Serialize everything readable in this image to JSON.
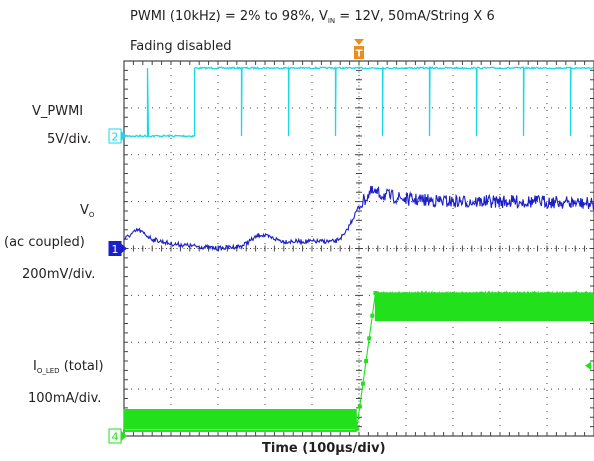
{
  "header": {
    "line1": "PWMI (10kHz) = 2% to 98%, V",
    "line1_sub": "IN",
    "line1_rest": " = 12V, 50mA/String X 6",
    "line2": "Fading disabled"
  },
  "labels": {
    "vpwmi_name": "V_PWMI",
    "vpwmi_scale": "5V/div.",
    "vo_name": "V",
    "vo_sub": "O",
    "vo_coupling": "(ac coupled)",
    "vo_scale": "200mV/div.",
    "io_name": "I",
    "io_sub": "O_LED",
    "io_rest": " (total)",
    "io_scale": "100mA/div."
  },
  "markers": {
    "ch2": "2",
    "ch1": "1",
    "ch4": "4",
    "trigger": "T"
  },
  "chart_data": {
    "type": "line",
    "xlabel": "Time (100µs/div)",
    "ylabel": "",
    "x_divisions": 10,
    "y_divisions": 8,
    "x_unit": "µs",
    "x_range": [
      0,
      1000
    ],
    "trigger_time_us": 500,
    "series": [
      {
        "name": "V_PWMI",
        "channel": "2",
        "color": "#1ad8e6",
        "scale": "5V/div.",
        "baseline_div": 6.4,
        "high_div": 7.85,
        "transition_us": 150,
        "pulse_period_us": 100
      },
      {
        "name": "V_O",
        "channel": "1",
        "color": "#1b1fc8",
        "scale": "200mV/div.",
        "ac_coupled": true,
        "points_div": [
          [
            0,
            4.2
          ],
          [
            30,
            4.4
          ],
          [
            60,
            4.2
          ],
          [
            100,
            4.1
          ],
          [
            150,
            4.05
          ],
          [
            200,
            4.0
          ],
          [
            250,
            4.05
          ],
          [
            290,
            4.3
          ],
          [
            340,
            4.15
          ],
          [
            400,
            4.15
          ],
          [
            450,
            4.15
          ],
          [
            470,
            4.3
          ],
          [
            500,
            4.9
          ],
          [
            525,
            5.2
          ],
          [
            600,
            5.05
          ],
          [
            700,
            5.0
          ],
          [
            800,
            5.0
          ],
          [
            900,
            5.0
          ],
          [
            1000,
            4.95
          ]
        ]
      },
      {
        "name": "I_O_LED (total)",
        "channel": "4",
        "color": "#22e01c",
        "scale": "100mA/div.",
        "low_div": 0.15,
        "high_div": 3.05,
        "rise_start_us": 495,
        "rise_end_us": 535
      }
    ]
  },
  "colors": {
    "grid": "#444444",
    "border": "#444444",
    "trigger": "#f08a1a"
  }
}
